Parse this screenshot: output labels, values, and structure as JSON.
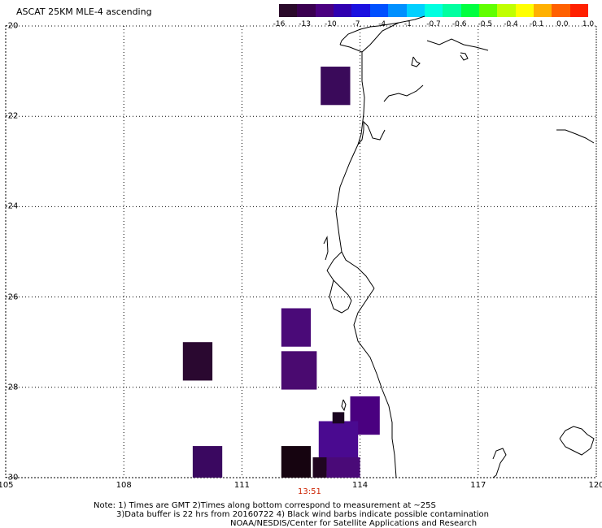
{
  "title": "ASCAT 25KM MLE-4 ascending",
  "colorbar": {
    "colors": [
      "#2a0a2a",
      "#3a0050",
      "#4a0080",
      "#3000b0",
      "#1a10e0",
      "#0050ff",
      "#0090ff",
      "#00d0ff",
      "#00ffe0",
      "#00ffa0",
      "#00ff40",
      "#60ff00",
      "#c0ff00",
      "#ffff00",
      "#ffb000",
      "#ff6000",
      "#ff2000"
    ],
    "labels": [
      "-16",
      "-13",
      "-10",
      "-7",
      "-4",
      "-1",
      "-0.7",
      "-0.6",
      "-0.5",
      "-0.4",
      "-0.1",
      "0.0",
      "1.0"
    ]
  },
  "axes": {
    "lon_min": 105,
    "lon_max": 120,
    "lat_min": -30,
    "lat_max": -20,
    "x_ticks": [
      "105",
      "108",
      "111",
      "114",
      "117",
      "120"
    ],
    "y_ticks": [
      "-20",
      "-22",
      "-24",
      "-26",
      "-28",
      "-30"
    ]
  },
  "timestamp": "13:51",
  "notes": [
    "Note: 1) Times are GMT 2)Times along bottom correspond to measurement at ~25S",
    "3)Data buffer is 22 hrs from 20160722 4) Black wind barbs indicate possible contamination",
    "NOAA/NESDIS/Center for Satellite Applications and Research"
  ],
  "data_cells": [
    {
      "lon0": 113.0,
      "lon1": 113.75,
      "lat0": -21.75,
      "lat1": -20.9,
      "color": "#3a0a5a"
    },
    {
      "lon0": 112.0,
      "lon1": 112.75,
      "lat0": -27.1,
      "lat1": -26.25,
      "color": "#4a0a78"
    },
    {
      "lon0": 112.0,
      "lon1": 112.9,
      "lat0": -28.05,
      "lat1": -27.2,
      "color": "#4a0a70"
    },
    {
      "lon0": 109.5,
      "lon1": 110.25,
      "lat0": -27.85,
      "lat1": -27.0,
      "color": "#2a0830"
    },
    {
      "lon0": 113.75,
      "lon1": 114.5,
      "lat0": -29.05,
      "lat1": -28.2,
      "color": "#4a0080"
    },
    {
      "lon0": 112.95,
      "lon1": 113.95,
      "lat0": -29.85,
      "lat1": -28.75,
      "color": "#4a0a90"
    },
    {
      "lon0": 113.3,
      "lon1": 113.6,
      "lat0": -28.8,
      "lat1": -28.55,
      "color": "#1a0520"
    },
    {
      "lon0": 109.75,
      "lon1": 110.5,
      "lat0": -30.0,
      "lat1": -29.3,
      "color": "#3a0860"
    },
    {
      "lon0": 112.0,
      "lon1": 112.75,
      "lat0": -30.0,
      "lat1": -29.3,
      "color": "#160410"
    },
    {
      "lon0": 112.8,
      "lon1": 113.15,
      "lat0": -30.0,
      "lat1": -29.55,
      "color": "#200620"
    },
    {
      "lon0": 113.15,
      "lon1": 114.0,
      "lat0": -30.0,
      "lat1": -29.55,
      "color": "#4a0a78"
    }
  ]
}
